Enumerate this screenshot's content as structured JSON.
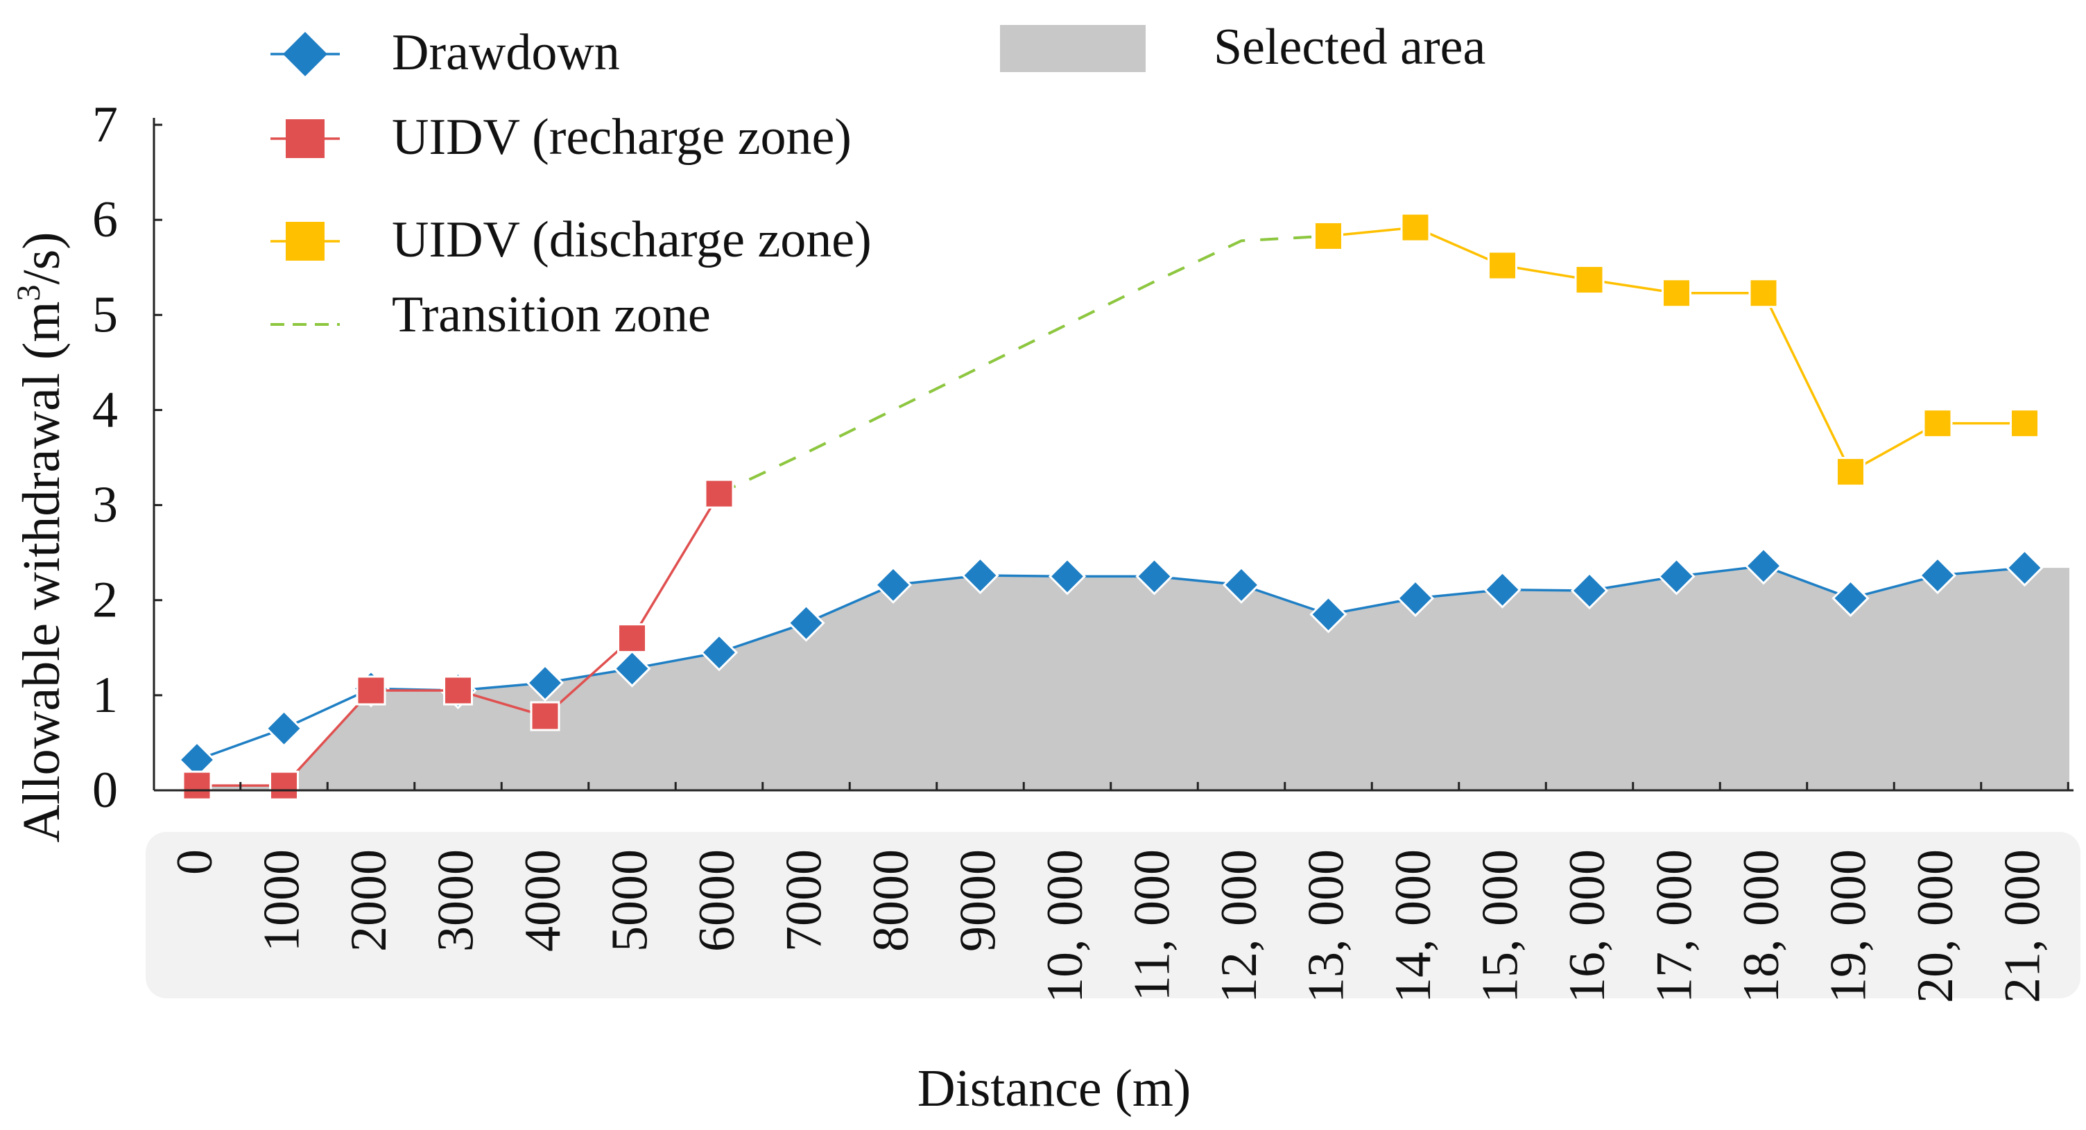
{
  "chart_data": {
    "type": "line",
    "x_label": "Distance (m)",
    "y_label_main": "Allowable withdrawal (m",
    "y_label_sup": "3",
    "y_label_end": "/s)",
    "ylim": [
      0,
      7
    ],
    "yticks": [
      0,
      1,
      2,
      3,
      4,
      5,
      6,
      7
    ],
    "categories": [
      "0",
      "1000",
      "2000",
      "3000",
      "4000",
      "5000",
      "6000",
      "7000",
      "8000",
      "9000",
      "10, 000",
      "11, 000",
      "12, 000",
      "13, 000",
      "14, 000",
      "15, 000",
      "16, 000",
      "17, 000",
      "18, 000",
      "19, 000",
      "20, 000",
      "21, 000"
    ],
    "grid": false,
    "legend_position": "top",
    "series": [
      {
        "name": "Drawdown",
        "kind": "line-diamond",
        "color": "#1f7fc4",
        "values": [
          0.32,
          0.65,
          1.07,
          1.05,
          1.13,
          1.28,
          1.45,
          1.76,
          2.16,
          2.26,
          2.25,
          2.25,
          2.16,
          1.85,
          2.02,
          2.11,
          2.1,
          2.25,
          2.36,
          2.02,
          2.26,
          2.34
        ]
      },
      {
        "name": "UIDV (recharge zone)",
        "kind": "line-square",
        "color": "#e05050",
        "values": [
          0.05,
          0.05,
          1.05,
          1.05,
          0.78,
          1.6,
          3.12,
          null,
          null,
          null,
          null,
          null,
          null,
          null,
          null,
          null,
          null,
          null,
          null,
          null,
          null,
          null
        ]
      },
      {
        "name": "UIDV (discharge zone)",
        "kind": "line-square",
        "color": "#ffc000",
        "values": [
          null,
          null,
          null,
          null,
          null,
          null,
          null,
          null,
          null,
          null,
          null,
          null,
          null,
          5.83,
          5.92,
          5.52,
          5.37,
          5.23,
          5.23,
          3.35,
          3.86,
          3.86
        ]
      },
      {
        "name": "Transition zone",
        "kind": "dashed",
        "color": "#8dc63f",
        "values": [
          null,
          null,
          null,
          null,
          null,
          null,
          3.12,
          3.55,
          4.0,
          4.45,
          4.9,
          5.35,
          5.78,
          5.83,
          null,
          null,
          null,
          null,
          null,
          null,
          null,
          null
        ]
      },
      {
        "name": "Selected area",
        "kind": "area",
        "color": "#c8c8c8",
        "values": [
          0.05,
          0.05,
          1.05,
          1.05,
          1.13,
          1.28,
          1.45,
          1.76,
          2.16,
          2.26,
          2.25,
          2.25,
          2.16,
          1.85,
          2.02,
          2.11,
          2.1,
          2.25,
          2.36,
          2.02,
          2.26,
          2.34
        ]
      }
    ]
  }
}
